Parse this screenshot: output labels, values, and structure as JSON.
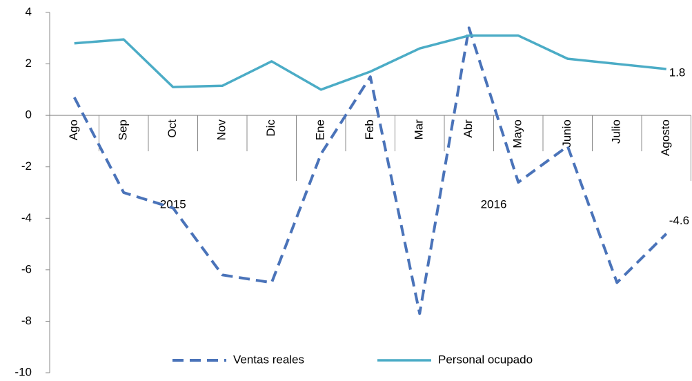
{
  "chart_data": {
    "type": "line",
    "categories": [
      "Ago",
      "Sep",
      "Oct",
      "Nov",
      "Dic",
      "Ene",
      "Feb",
      "Mar",
      "Abr",
      "Mayo",
      "Junio",
      "Julio",
      "Agosto"
    ],
    "category_groups": [
      "2015",
      "2015",
      "2015",
      "2015",
      "2015",
      "2016",
      "2016",
      "2016",
      "2016",
      "2016",
      "2016",
      "2016",
      "2016"
    ],
    "series": [
      {
        "name": "Ventas reales",
        "color": "#4a73b9",
        "dashed": true,
        "values": [
          0.7,
          -3.0,
          -3.6,
          -6.2,
          -6.5,
          -1.5,
          1.5,
          -7.7,
          3.4,
          -2.6,
          -1.2,
          -6.5,
          -4.6
        ]
      },
      {
        "name": "Personal ocupado",
        "color": "#4bacc6",
        "dashed": false,
        "values": [
          2.8,
          2.95,
          1.1,
          1.15,
          2.1,
          1.0,
          1.7,
          2.6,
          3.1,
          3.1,
          2.2,
          2.0,
          1.8
        ]
      }
    ],
    "ylim": [
      -10,
      4
    ],
    "yticks": [
      -10,
      -8,
      -6,
      -4,
      -2,
      0,
      2,
      4
    ],
    "legend": "bottom"
  }
}
